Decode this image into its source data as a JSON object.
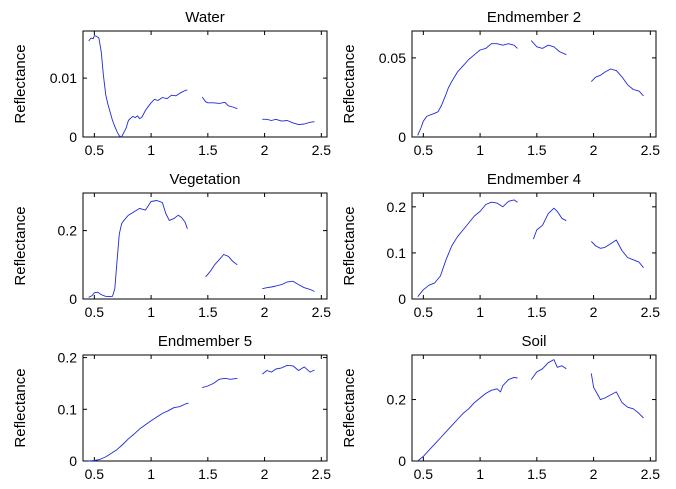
{
  "figure": {
    "background": "#ffffff",
    "line_color": "#1f2bd6",
    "axis_color": "#000000"
  },
  "chart_data": [
    {
      "type": "line",
      "title": "Water",
      "xlabel": "",
      "ylabel": "Reflectance",
      "xlim": [
        0.4,
        2.55
      ],
      "ylim": [
        0,
        0.018
      ],
      "xticks": [
        0.5,
        1,
        1.5,
        2,
        2.5
      ],
      "xtick_labels": [
        "0.5",
        "1",
        "1.5",
        "2",
        "2.5"
      ],
      "yticks": [
        0,
        0.01
      ],
      "ytick_labels": [
        "0",
        "0.01"
      ],
      "grid": false,
      "series": [
        {
          "x": [
            0.45,
            0.47,
            0.49,
            0.5,
            0.52,
            0.54,
            0.56,
            0.58,
            0.6,
            0.62,
            0.64,
            0.66,
            0.68,
            0.7,
            0.72,
            0.74,
            0.76,
            0.78,
            0.8,
            0.82,
            0.84,
            0.86,
            0.88,
            0.9,
            0.92,
            0.95,
            0.98,
            1.0,
            1.03,
            1.06,
            1.1,
            1.14,
            1.18,
            1.22,
            1.26,
            1.3,
            1.32
          ],
          "y": [
            0.0163,
            0.0168,
            0.0167,
            0.0172,
            0.0171,
            0.0168,
            0.0145,
            0.0105,
            0.0072,
            0.0055,
            0.0042,
            0.0028,
            0.0018,
            0.0009,
            0.0002,
            0.0,
            0.0008,
            0.0015,
            0.0028,
            0.0032,
            0.0035,
            0.0033,
            0.0036,
            0.0031,
            0.0034,
            0.0045,
            0.0053,
            0.0058,
            0.0064,
            0.0062,
            0.0067,
            0.0065,
            0.0071,
            0.007,
            0.0075,
            0.0079,
            0.008
          ]
        },
        {
          "x": [
            1.45,
            1.48,
            1.5,
            1.55,
            1.6,
            1.65,
            1.68,
            1.72,
            1.76
          ],
          "y": [
            0.0068,
            0.006,
            0.0058,
            0.0058,
            0.0057,
            0.0059,
            0.0053,
            0.0051,
            0.0048
          ]
        },
        {
          "x": [
            1.98,
            2.02,
            2.06,
            2.1,
            2.15,
            2.2,
            2.25,
            2.3,
            2.35,
            2.4,
            2.44
          ],
          "y": [
            0.003,
            0.003,
            0.0028,
            0.003,
            0.0027,
            0.0028,
            0.0024,
            0.0021,
            0.0022,
            0.0025,
            0.0026
          ]
        }
      ]
    },
    {
      "type": "line",
      "title": "Endmember 2",
      "xlabel": "",
      "ylabel": "Reflectance",
      "xlim": [
        0.4,
        2.55
      ],
      "ylim": [
        0,
        0.067
      ],
      "xticks": [
        0.5,
        1,
        1.5,
        2,
        2.5
      ],
      "xtick_labels": [
        "0.5",
        "1",
        "1.5",
        "2",
        "2.5"
      ],
      "yticks": [
        0,
        0.05
      ],
      "ytick_labels": [
        "0",
        "0.05"
      ],
      "grid": false,
      "series": [
        {
          "x": [
            0.45,
            0.48,
            0.5,
            0.53,
            0.56,
            0.6,
            0.63,
            0.66,
            0.7,
            0.72,
            0.75,
            0.8,
            0.85,
            0.9,
            0.95,
            1.0,
            1.05,
            1.1,
            1.15,
            1.2,
            1.25,
            1.3,
            1.33
          ],
          "y": [
            0.001,
            0.006,
            0.01,
            0.013,
            0.014,
            0.015,
            0.016,
            0.02,
            0.027,
            0.031,
            0.035,
            0.041,
            0.045,
            0.049,
            0.052,
            0.055,
            0.056,
            0.059,
            0.059,
            0.058,
            0.059,
            0.058,
            0.056
          ]
        },
        {
          "x": [
            1.45,
            1.5,
            1.55,
            1.6,
            1.65,
            1.7,
            1.76
          ],
          "y": [
            0.061,
            0.057,
            0.056,
            0.058,
            0.057,
            0.054,
            0.052
          ]
        },
        {
          "x": [
            1.98,
            2.02,
            2.06,
            2.1,
            2.15,
            2.2,
            2.25,
            2.3,
            2.35,
            2.4,
            2.44
          ],
          "y": [
            0.035,
            0.038,
            0.039,
            0.041,
            0.043,
            0.042,
            0.038,
            0.033,
            0.03,
            0.029,
            0.026
          ]
        }
      ]
    },
    {
      "type": "line",
      "title": "Vegetation",
      "xlabel": "",
      "ylabel": "Reflectance",
      "xlim": [
        0.4,
        2.55
      ],
      "ylim": [
        0,
        0.31
      ],
      "xticks": [
        0.5,
        1,
        1.5,
        2,
        2.5
      ],
      "xtick_labels": [
        "0.5",
        "1",
        "1.5",
        "2",
        "2.5"
      ],
      "yticks": [
        0,
        0.2
      ],
      "ytick_labels": [
        "0",
        "0.2"
      ],
      "grid": false,
      "series": [
        {
          "x": [
            0.45,
            0.48,
            0.5,
            0.53,
            0.55,
            0.58,
            0.6,
            0.63,
            0.66,
            0.68,
            0.7,
            0.72,
            0.74,
            0.76,
            0.8,
            0.85,
            0.9,
            0.95,
            1.0,
            1.05,
            1.1,
            1.13,
            1.16,
            1.2,
            1.24,
            1.27,
            1.3,
            1.32
          ],
          "y": [
            0.005,
            0.01,
            0.018,
            0.02,
            0.015,
            0.01,
            0.008,
            0.007,
            0.008,
            0.03,
            0.11,
            0.19,
            0.22,
            0.23,
            0.245,
            0.255,
            0.265,
            0.26,
            0.285,
            0.288,
            0.282,
            0.25,
            0.23,
            0.235,
            0.245,
            0.238,
            0.225,
            0.205
          ]
        },
        {
          "x": [
            1.48,
            1.52,
            1.56,
            1.6,
            1.64,
            1.68,
            1.72,
            1.76
          ],
          "y": [
            0.065,
            0.08,
            0.1,
            0.115,
            0.13,
            0.125,
            0.11,
            0.1
          ]
        },
        {
          "x": [
            1.98,
            2.02,
            2.06,
            2.1,
            2.15,
            2.2,
            2.25,
            2.3,
            2.35,
            2.4,
            2.44
          ],
          "y": [
            0.03,
            0.033,
            0.035,
            0.038,
            0.042,
            0.05,
            0.052,
            0.042,
            0.033,
            0.028,
            0.022
          ]
        }
      ]
    },
    {
      "type": "line",
      "title": "Endmember 4",
      "xlabel": "",
      "ylabel": "Reflectance",
      "xlim": [
        0.4,
        2.55
      ],
      "ylim": [
        0,
        0.23
      ],
      "xticks": [
        0.5,
        1,
        1.5,
        2,
        2.5
      ],
      "xtick_labels": [
        "0.5",
        "1",
        "1.5",
        "2",
        "2.5"
      ],
      "yticks": [
        0,
        0.1,
        0.2
      ],
      "ytick_labels": [
        "0",
        "0.1",
        "0.2"
      ],
      "grid": false,
      "series": [
        {
          "x": [
            0.45,
            0.5,
            0.55,
            0.6,
            0.65,
            0.7,
            0.75,
            0.8,
            0.85,
            0.9,
            0.95,
            1.0,
            1.05,
            1.1,
            1.15,
            1.2,
            1.25,
            1.3,
            1.33
          ],
          "y": [
            0.005,
            0.02,
            0.03,
            0.035,
            0.05,
            0.085,
            0.115,
            0.135,
            0.15,
            0.165,
            0.18,
            0.19,
            0.205,
            0.21,
            0.208,
            0.2,
            0.212,
            0.215,
            0.21
          ]
        },
        {
          "x": [
            1.47,
            1.5,
            1.55,
            1.6,
            1.65,
            1.68,
            1.72,
            1.76
          ],
          "y": [
            0.13,
            0.15,
            0.16,
            0.185,
            0.197,
            0.19,
            0.175,
            0.17
          ]
        },
        {
          "x": [
            1.98,
            2.02,
            2.06,
            2.1,
            2.15,
            2.2,
            2.25,
            2.3,
            2.35,
            2.4,
            2.44
          ],
          "y": [
            0.125,
            0.115,
            0.11,
            0.112,
            0.12,
            0.128,
            0.105,
            0.09,
            0.085,
            0.08,
            0.068
          ]
        }
      ]
    },
    {
      "type": "line",
      "title": "Endmember 5",
      "xlabel": "",
      "ylabel": "Reflectance",
      "xlim": [
        0.4,
        2.55
      ],
      "ylim": [
        0,
        0.205
      ],
      "xticks": [
        0.5,
        1,
        1.5,
        2,
        2.5
      ],
      "xtick_labels": [
        "0.5",
        "1",
        "1.5",
        "2",
        "2.5"
      ],
      "yticks": [
        0,
        0.1,
        0.2
      ],
      "ytick_labels": [
        "0",
        "0.1",
        "0.2"
      ],
      "grid": false,
      "series": [
        {
          "x": [
            0.45,
            0.5,
            0.55,
            0.6,
            0.65,
            0.7,
            0.75,
            0.8,
            0.85,
            0.9,
            0.95,
            1.0,
            1.05,
            1.1,
            1.15,
            1.2,
            1.25,
            1.3,
            1.33
          ],
          "y": [
            0.0,
            0.001,
            0.003,
            0.008,
            0.015,
            0.022,
            0.032,
            0.043,
            0.052,
            0.062,
            0.07,
            0.078,
            0.085,
            0.092,
            0.097,
            0.103,
            0.105,
            0.11,
            0.112
          ]
        },
        {
          "x": [
            1.45,
            1.5,
            1.55,
            1.6,
            1.65,
            1.7,
            1.76
          ],
          "y": [
            0.142,
            0.145,
            0.15,
            0.158,
            0.16,
            0.158,
            0.16
          ]
        },
        {
          "x": [
            1.98,
            2.02,
            2.06,
            2.1,
            2.15,
            2.2,
            2.25,
            2.3,
            2.35,
            2.4,
            2.44
          ],
          "y": [
            0.168,
            0.175,
            0.172,
            0.178,
            0.18,
            0.185,
            0.184,
            0.175,
            0.182,
            0.172,
            0.176
          ]
        }
      ]
    },
    {
      "type": "line",
      "title": "Soil",
      "xlabel": "",
      "ylabel": "Reflectance",
      "xlim": [
        0.4,
        2.55
      ],
      "ylim": [
        0,
        0.345
      ],
      "xticks": [
        0.5,
        1,
        1.5,
        2,
        2.5
      ],
      "xtick_labels": [
        "0.5",
        "1",
        "1.5",
        "2",
        "2.5"
      ],
      "yticks": [
        0,
        0.2
      ],
      "ytick_labels": [
        "0",
        "0.2"
      ],
      "grid": false,
      "series": [
        {
          "x": [
            0.45,
            0.5,
            0.55,
            0.6,
            0.65,
            0.7,
            0.75,
            0.8,
            0.85,
            0.9,
            0.95,
            1.0,
            1.05,
            1.1,
            1.15,
            1.18,
            1.2,
            1.25,
            1.3,
            1.33
          ],
          "y": [
            0.0,
            0.015,
            0.035,
            0.055,
            0.075,
            0.095,
            0.115,
            0.135,
            0.155,
            0.17,
            0.19,
            0.205,
            0.22,
            0.23,
            0.235,
            0.225,
            0.245,
            0.265,
            0.272,
            0.27
          ]
        },
        {
          "x": [
            1.45,
            1.5,
            1.55,
            1.6,
            1.65,
            1.68,
            1.72,
            1.76
          ],
          "y": [
            0.265,
            0.29,
            0.3,
            0.32,
            0.33,
            0.305,
            0.31,
            0.3
          ]
        },
        {
          "x": [
            1.98,
            2.0,
            2.03,
            2.06,
            2.1,
            2.15,
            2.2,
            2.25,
            2.3,
            2.35,
            2.4,
            2.44
          ],
          "y": [
            0.285,
            0.24,
            0.22,
            0.2,
            0.205,
            0.215,
            0.225,
            0.19,
            0.175,
            0.17,
            0.155,
            0.14
          ]
        }
      ]
    }
  ]
}
